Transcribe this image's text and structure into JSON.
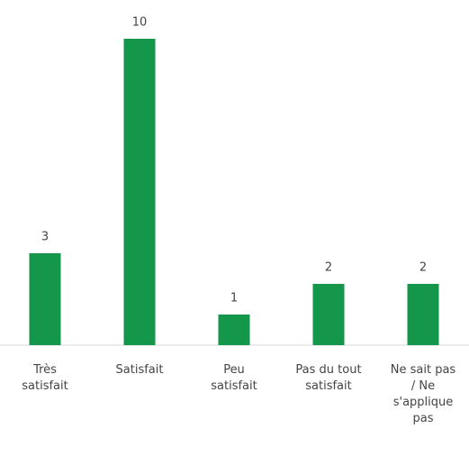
{
  "chart_data": {
    "type": "bar",
    "categories": [
      "Très satisfait",
      "Satisfait",
      "Peu satisfait",
      "Pas du tout satisfait",
      "Ne sait pas / Ne s'applique pas"
    ],
    "values": [
      3,
      10,
      1,
      2,
      2
    ],
    "color": "#14964b"
  }
}
